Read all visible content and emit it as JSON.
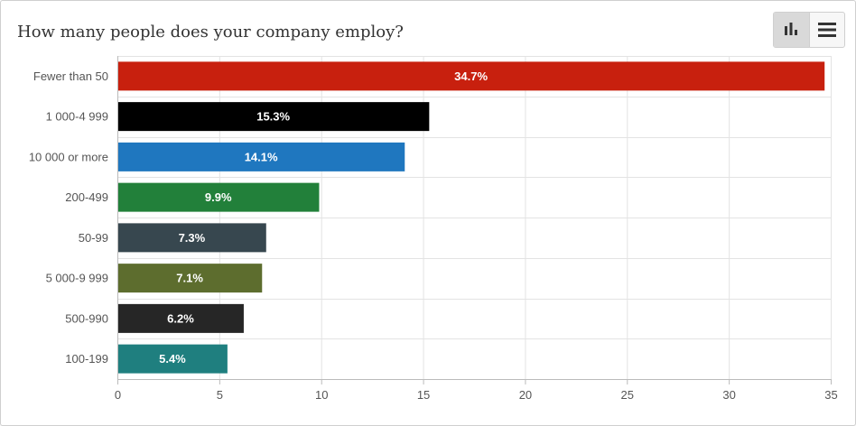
{
  "header": {
    "title": "How many people does your company employ?",
    "chart_view_icon": "bar-chart-icon",
    "table_view_icon": "list-icon"
  },
  "chart_data": {
    "type": "bar",
    "orientation": "horizontal",
    "title": "How many people does your company employ?",
    "xlabel": "",
    "ylabel": "",
    "categories": [
      "Fewer than 50",
      "1 000-4 999",
      "10 000 or more",
      "200-499",
      "50-99",
      "5 000-9 999",
      "500-990",
      "100-199"
    ],
    "values": [
      34.7,
      15.3,
      14.1,
      9.9,
      7.3,
      7.1,
      6.2,
      5.4
    ],
    "value_labels": [
      "34.7%",
      "15.3%",
      "14.1%",
      "9.9%",
      "7.3%",
      "7.1%",
      "6.2%",
      "5.4%"
    ],
    "colors": [
      "#c8200e",
      "#000000",
      "#1f77bf",
      "#22803a",
      "#37474f",
      "#5d6d2e",
      "#262626",
      "#1f7f7f"
    ],
    "xlim": [
      0,
      35
    ],
    "ticks": [
      0,
      5,
      10,
      15,
      20,
      25,
      30,
      35
    ],
    "grid": true,
    "legend": "none"
  }
}
